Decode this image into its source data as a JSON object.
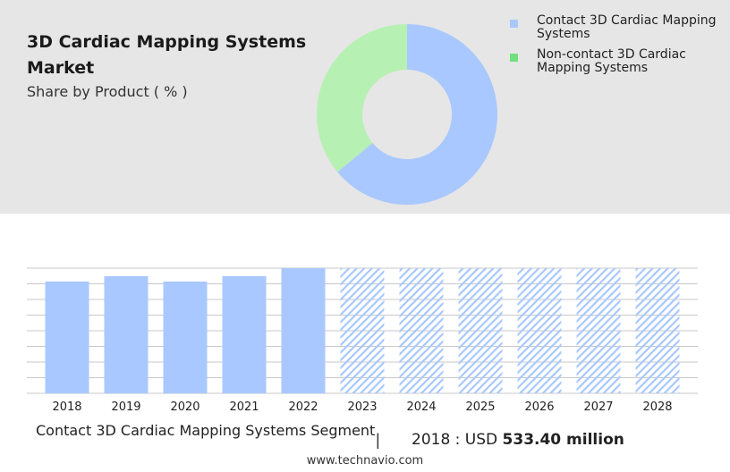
{
  "header": {
    "title": "3D Cardiac Mapping Systems Market",
    "subtitle": "Share by Product ( % )"
  },
  "chart_data": [
    {
      "type": "pie",
      "variant": "donut",
      "categories": [
        "Contact 3D Cardiac Mapping Systems",
        "Non-contact 3D Cardiac Mapping Systems"
      ],
      "values": [
        64,
        36
      ],
      "colors": [
        "#a9c8ff",
        "#b7f0b3"
      ],
      "legend": {
        "placement": "top-right",
        "entries": [
          {
            "label": "Contact 3D Cardiac Mapping Systems",
            "color": "#a9c8ff"
          },
          {
            "label": "Non-contact 3D Cardiac Mapping Systems",
            "color": "#6fe07c"
          }
        ]
      }
    },
    {
      "type": "bar",
      "categories": [
        "2018",
        "2019",
        "2020",
        "2021",
        "2022",
        "2023",
        "2024",
        "2025",
        "2026",
        "2027",
        "2028"
      ],
      "values": [
        533.4,
        559,
        533.4,
        559,
        597,
        597,
        597,
        597,
        597,
        597,
        597
      ],
      "forecast_from": "2023",
      "ylim": [
        0,
        597
      ],
      "grid": true,
      "colors": {
        "actual": "#a9c8ff",
        "forecast_hatch": "#a9c8ff"
      }
    }
  ],
  "footer": {
    "segment": "Contact 3D Cardiac Mapping Systems Segment",
    "divider": "|",
    "year_label": "2018 : USD",
    "value": "533.40 million",
    "website": "www.technavio.com"
  }
}
